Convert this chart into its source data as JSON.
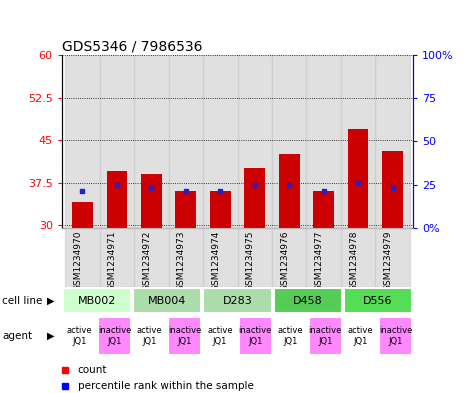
{
  "title": "GDS5346 / 7986536",
  "samples": [
    "GSM1234970",
    "GSM1234971",
    "GSM1234972",
    "GSM1234973",
    "GSM1234974",
    "GSM1234975",
    "GSM1234976",
    "GSM1234977",
    "GSM1234978",
    "GSM1234979"
  ],
  "bar_values": [
    34.0,
    39.5,
    39.0,
    36.0,
    36.0,
    40.0,
    42.5,
    36.0,
    47.0,
    43.0
  ],
  "bar_bottom": 29.5,
  "blue_dots": [
    36.0,
    37.0,
    36.5,
    36.0,
    36.0,
    37.0,
    37.0,
    36.0,
    37.5,
    36.5
  ],
  "ylim_left": [
    29.5,
    60
  ],
  "ylim_right": [
    0,
    100
  ],
  "yticks_left": [
    30,
    37.5,
    45,
    52.5,
    60
  ],
  "yticks_right": [
    0,
    25,
    50,
    75,
    100
  ],
  "ytick_labels_left": [
    "30",
    "37.5",
    "45",
    "52.5",
    "60"
  ],
  "ytick_labels_right": [
    "0%",
    "25",
    "50",
    "75",
    "100%"
  ],
  "bar_color": "#cc0000",
  "dot_color": "#2222cc",
  "bar_width": 0.6,
  "cell_line_groups": [
    {
      "label": "MB002",
      "start": 0,
      "end": 2,
      "color": "#ccffcc"
    },
    {
      "label": "MB004",
      "start": 2,
      "end": 4,
      "color": "#aaddaa"
    },
    {
      "label": "D283",
      "start": 4,
      "end": 6,
      "color": "#aaddaa"
    },
    {
      "label": "D458",
      "start": 6,
      "end": 8,
      "color": "#55cc55"
    },
    {
      "label": "D556",
      "start": 8,
      "end": 10,
      "color": "#55dd55"
    }
  ],
  "agent_active_color": "#ffffff",
  "agent_inactive_color": "#ff88ff",
  "col_bg_color": "#cccccc",
  "title_fontsize": 10,
  "tick_fontsize": 8,
  "sample_fontsize": 6.5
}
